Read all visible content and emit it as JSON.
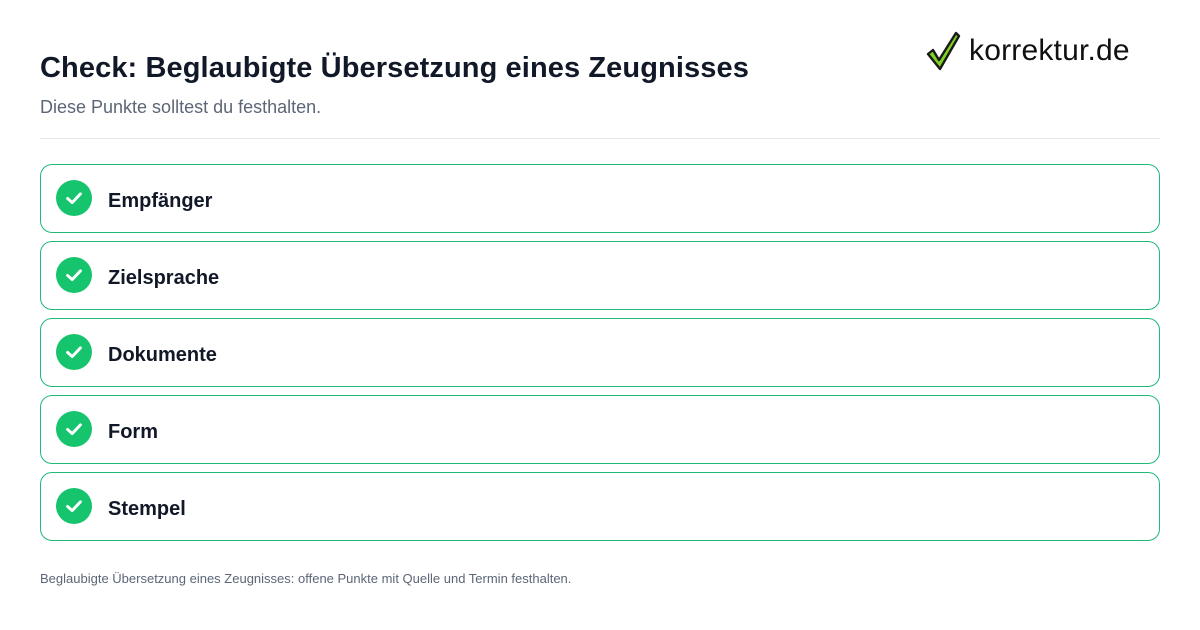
{
  "header": {
    "title": "Check: Beglaubigte Übersetzung eines Zeugnisses",
    "subtitle": "Diese Punkte solltest du festhalten."
  },
  "logo": {
    "text": "korrektur.de",
    "icon": "checkmark-icon",
    "colors": {
      "check_stroke": "#1a1a1a",
      "check_fill": "#7ed321"
    }
  },
  "checklist": {
    "items": [
      {
        "label": "Empfänger",
        "icon": "check-circle-icon"
      },
      {
        "label": "Zielsprache",
        "icon": "check-circle-icon"
      },
      {
        "label": "Dokumente",
        "icon": "check-circle-icon"
      },
      {
        "label": "Form",
        "icon": "check-circle-icon"
      },
      {
        "label": "Stempel",
        "icon": "check-circle-icon"
      }
    ]
  },
  "footer": {
    "text": "Beglaubigte Übersetzung eines Zeugnisses: offene Punkte mit Quelle und Termin festhalten."
  },
  "colors": {
    "accent_green": "#16c46e",
    "card_border": "#1fb978",
    "title_text": "#111827",
    "muted_text": "#5c6677",
    "divider": "#e5e7eb"
  }
}
